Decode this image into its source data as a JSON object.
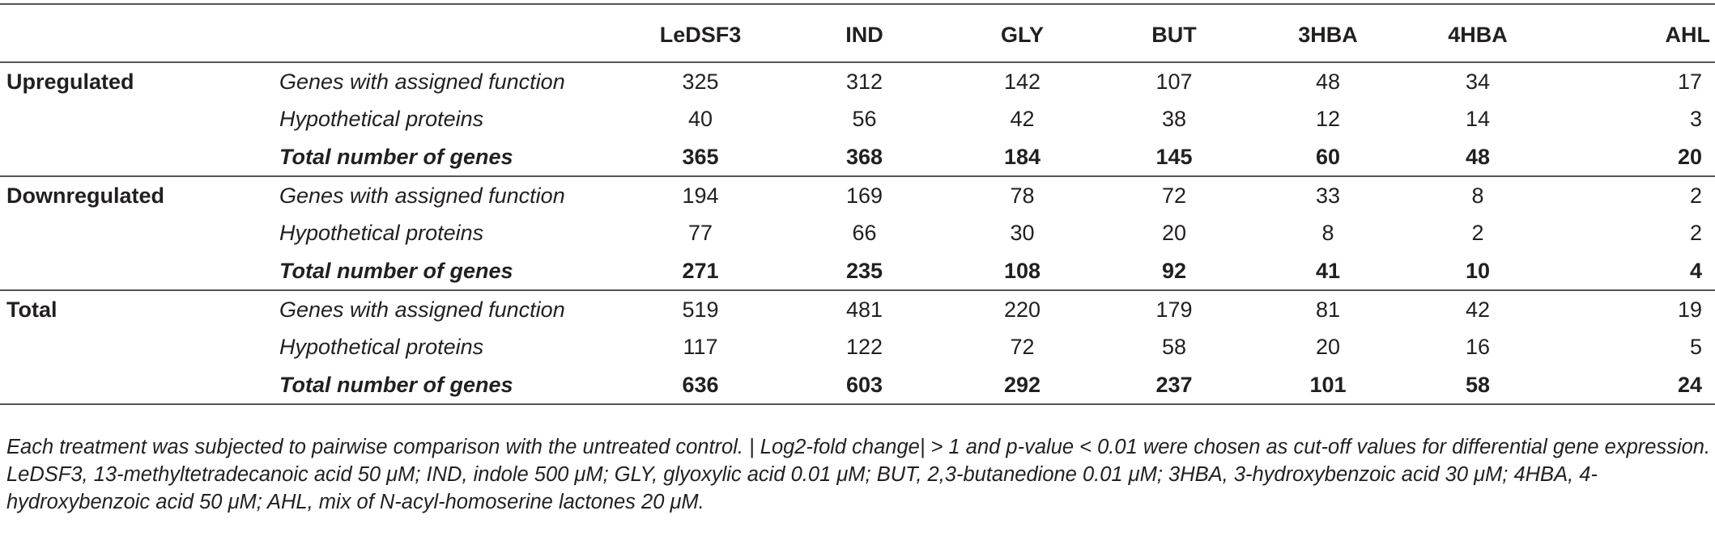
{
  "columns": [
    "",
    "",
    "LeDSF3",
    "IND",
    "GLY",
    "BUT",
    "3HBA",
    "4HBA",
    "AHL"
  ],
  "groups": [
    {
      "name": "Upregulated",
      "rows": [
        {
          "label": "Genes with assigned function",
          "values": [
            "325",
            "312",
            "142",
            "107",
            "48",
            "34",
            "17"
          ]
        },
        {
          "label": "Hypothetical proteins",
          "values": [
            "40",
            "56",
            "42",
            "38",
            "12",
            "14",
            "3"
          ]
        },
        {
          "label": "Total number of genes",
          "values": [
            "365",
            "368",
            "184",
            "145",
            "60",
            "48",
            "20"
          ]
        }
      ]
    },
    {
      "name": "Downregulated",
      "rows": [
        {
          "label": "Genes with assigned function",
          "values": [
            "194",
            "169",
            "78",
            "72",
            "33",
            "8",
            "2"
          ]
        },
        {
          "label": "Hypothetical proteins",
          "values": [
            "77",
            "66",
            "30",
            "20",
            "8",
            "2",
            "2"
          ]
        },
        {
          "label": "Total number of genes",
          "values": [
            "271",
            "235",
            "108",
            "92",
            "41",
            "10",
            "4"
          ]
        }
      ]
    },
    {
      "name": "Total",
      "rows": [
        {
          "label": "Genes with assigned function",
          "values": [
            "519",
            "481",
            "220",
            "179",
            "81",
            "42",
            "19"
          ]
        },
        {
          "label": "Hypothetical proteins",
          "values": [
            "117",
            "122",
            "72",
            "58",
            "20",
            "16",
            "5"
          ]
        },
        {
          "label": "Total number of genes",
          "values": [
            "636",
            "603",
            "292",
            "237",
            "101",
            "58",
            "24"
          ]
        }
      ]
    }
  ],
  "footnotes": [
    "Each treatment was subjected to pairwise comparison with the untreated control. | Log2-fold change| > 1 and p-value < 0.01 were chosen as cut-off values for differential gene expression.",
    "LeDSF3, 13-methyltetradecanoic acid 50 μM; IND, indole 500 μM; GLY, glyoxylic acid 0.01 μM; BUT, 2,3-butanedione 0.01 μM; 3HBA, 3-hydroxybenzoic acid 30 μM; 4HBA, 4-hydroxybenzoic acid 50 μM; AHL, mix of N-acyl-homoserine lactones 20 μM."
  ]
}
